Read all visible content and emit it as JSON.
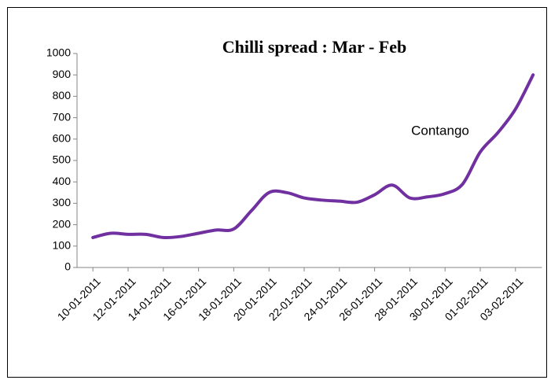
{
  "chart_data": {
    "type": "line",
    "title": "Chilli spread : Mar - Feb",
    "annotations": [
      "Contango"
    ],
    "categories": [
      "10-01-2011",
      null,
      "12-01-2011",
      null,
      "14-01-2011",
      null,
      "16-01-2011",
      null,
      "18-01-2011",
      null,
      "20-01-2011",
      null,
      "22-01-2011",
      null,
      "24-01-2011",
      null,
      "26-01-2011",
      null,
      "28-01-2011",
      null,
      "30-01-2011",
      null,
      "01-02-2011",
      null,
      "03-02-2011",
      null
    ],
    "series": [
      {
        "name": "Chilli spread",
        "color": "#7030a0",
        "values": [
          140,
          160,
          155,
          155,
          140,
          145,
          160,
          175,
          180,
          265,
          350,
          350,
          325,
          315,
          310,
          305,
          340,
          385,
          325,
          330,
          345,
          390,
          540,
          630,
          740,
          900
        ]
      }
    ],
    "ylim": [
      0,
      1000
    ],
    "yticks": [
      0,
      100,
      200,
      300,
      400,
      500,
      600,
      700,
      800,
      900,
      1000
    ],
    "grid": false,
    "legend": false
  }
}
